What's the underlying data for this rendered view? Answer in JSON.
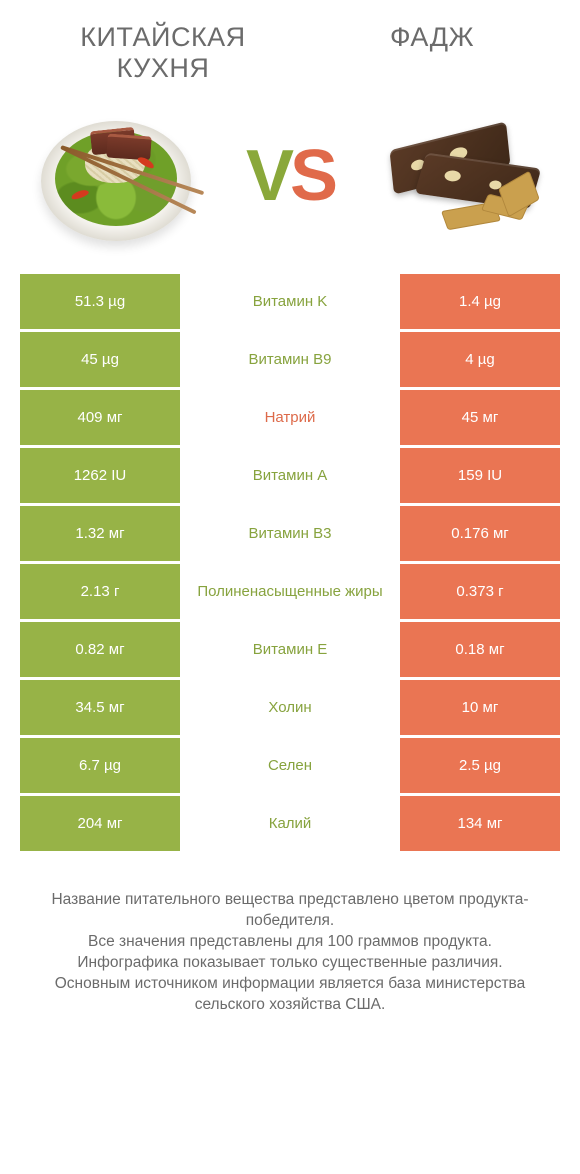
{
  "colors": {
    "left_bg": "#97b347",
    "right_bg": "#ea7553",
    "mid_winner_left": "#87a33e",
    "mid_winner_right": "#dd6a4a",
    "text_muted": "#6b6b6b"
  },
  "header": {
    "left_title": "КИТАЙСКАЯ КУХНЯ",
    "right_title": "ФАДЖ",
    "vs_v": "V",
    "vs_s": "S"
  },
  "rows": [
    {
      "nutrient": "Витамин K",
      "left": "51.3 µg",
      "right": "1.4 µg",
      "winner": "left"
    },
    {
      "nutrient": "Витамин B9",
      "left": "45 µg",
      "right": "4 µg",
      "winner": "left"
    },
    {
      "nutrient": "Натрий",
      "left": "409 мг",
      "right": "45 мг",
      "winner": "right"
    },
    {
      "nutrient": "Витамин A",
      "left": "1262 IU",
      "right": "159 IU",
      "winner": "left"
    },
    {
      "nutrient": "Витамин B3",
      "left": "1.32 мг",
      "right": "0.176 мг",
      "winner": "left"
    },
    {
      "nutrient": "Полиненасыщенные жиры",
      "left": "2.13 г",
      "right": "0.373 г",
      "winner": "left"
    },
    {
      "nutrient": "Витамин E",
      "left": "0.82 мг",
      "right": "0.18 мг",
      "winner": "left"
    },
    {
      "nutrient": "Холин",
      "left": "34.5 мг",
      "right": "10 мг",
      "winner": "left"
    },
    {
      "nutrient": "Селен",
      "left": "6.7 µg",
      "right": "2.5 µg",
      "winner": "left"
    },
    {
      "nutrient": "Калий",
      "left": "204 мг",
      "right": "134 мг",
      "winner": "left"
    }
  ],
  "footnote": "Название питательного вещества представлено цветом продукта-победителя.\nВсе значения представлены для 100 граммов продукта.\nИнфографика показывает только существенные различия.\nОсновным источником информации является база министерства сельского хозяйства США."
}
